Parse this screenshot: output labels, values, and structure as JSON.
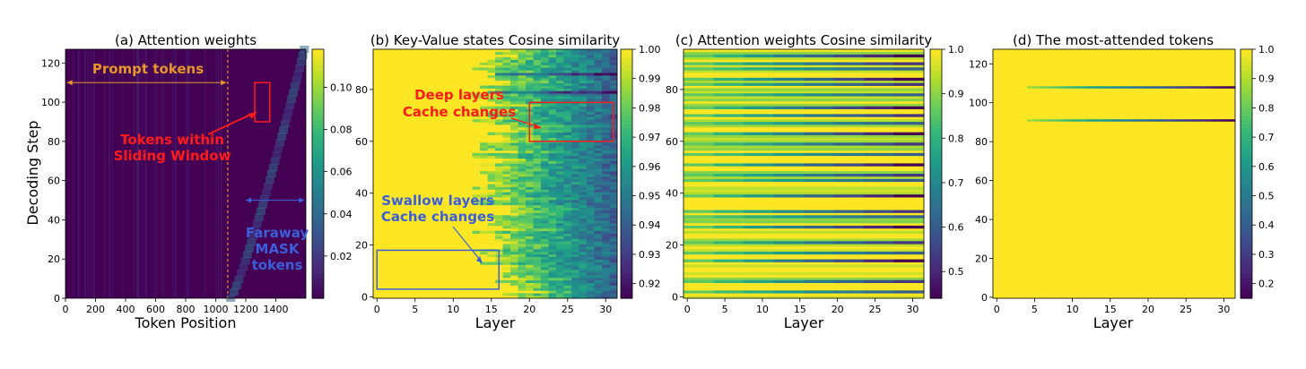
{
  "colors": {
    "purple": "#440154",
    "yellow": "#fde725",
    "red": "#ff1a1a",
    "blue": "#3b5fd9",
    "orange": "#e6952a"
  },
  "chart_data": [
    {
      "id": "a",
      "type": "heatmap",
      "title": "(a) Attention weights",
      "xlabel": "Token Position",
      "ylabel": "Decoding Step",
      "xlim": [
        0,
        1600
      ],
      "ylim": [
        0,
        127
      ],
      "xticks": [
        0,
        200,
        400,
        600,
        800,
        1000,
        1200,
        1400
      ],
      "yticks": [
        0,
        20,
        40,
        60,
        80,
        100,
        120
      ],
      "colorbar": {
        "range": [
          0,
          0.118
        ],
        "ticks": [
          0.02,
          0.04,
          0.06,
          0.08,
          0.1
        ],
        "labels": [
          "0.02",
          "0.04",
          "0.06",
          "0.08",
          "0.10"
        ]
      },
      "prompt_end": 1080,
      "diagonal": {
        "x_start": 1100,
        "x_end": 1590,
        "y_start": 0,
        "y_end": 127
      },
      "annotations": {
        "prompt": "Prompt tokens",
        "window_l1": "Tokens within",
        "window_l2": "Sliding Window",
        "faraway_l1": "Faraway",
        "faraway_l2": "MASK",
        "faraway_l3": "tokens"
      },
      "window_box": {
        "x": [
          1260,
          1360
        ],
        "y": [
          90,
          110
        ]
      }
    },
    {
      "id": "b",
      "type": "heatmap",
      "title": "(b) Key-Value states Cosine similarity",
      "xlabel": "Layer",
      "ylabel": "",
      "xlim": [
        -0.5,
        31.5
      ],
      "ylim": [
        -0.5,
        95.5
      ],
      "xticks": [
        0,
        5,
        10,
        15,
        20,
        25,
        30
      ],
      "yticks": [
        0,
        20,
        40,
        60,
        80
      ],
      "colorbar": {
        "range": [
          0.915,
          1.0
        ],
        "ticks": [
          0.92,
          0.93,
          0.94,
          0.95,
          0.96,
          0.97,
          0.98,
          0.99,
          1.0
        ],
        "labels": [
          "0.92",
          "0.93",
          "0.94",
          "0.95",
          "0.96",
          "0.97",
          "0.98",
          "0.99",
          "1.00"
        ]
      },
      "annotations": {
        "deep_l1": "Deep layers",
        "deep_l2": "Cache changes",
        "swallow_l1": "Swallow layers",
        "swallow_l2": "Cache changes"
      },
      "deep_box": {
        "x": [
          20,
          31
        ],
        "y": [
          60,
          75
        ]
      },
      "swallow_box": {
        "x": [
          0,
          16
        ],
        "y": [
          3,
          18
        ]
      }
    },
    {
      "id": "c",
      "type": "heatmap",
      "title": "(c) Attention weights Cosine similarity",
      "xlabel": "Layer",
      "ylabel": "",
      "xlim": [
        -0.5,
        31.5
      ],
      "ylim": [
        -0.5,
        95.5
      ],
      "xticks": [
        0,
        5,
        10,
        15,
        20,
        25,
        30
      ],
      "yticks": [
        0,
        20,
        40,
        60,
        80
      ],
      "colorbar": {
        "range": [
          0.44,
          1.0
        ],
        "ticks": [
          0.5,
          0.6,
          0.7,
          0.8,
          0.9,
          1.0
        ],
        "labels": [
          "0.5",
          "0.6",
          "0.7",
          "0.8",
          "0.9",
          "1.0"
        ]
      },
      "dark_rows": [
        2,
        6,
        14,
        17,
        21,
        27,
        31,
        33,
        39,
        45,
        47,
        51,
        55,
        59,
        63,
        67,
        70,
        73,
        78,
        82,
        84,
        88,
        90,
        93
      ]
    },
    {
      "id": "d",
      "type": "heatmap",
      "title": "(d) The most-attended tokens",
      "xlabel": "Layer",
      "ylabel": "",
      "xlim": [
        -0.5,
        31.5
      ],
      "ylim": [
        -0.5,
        127.5
      ],
      "xticks": [
        0,
        5,
        10,
        15,
        20,
        25,
        30
      ],
      "yticks": [
        0,
        20,
        40,
        60,
        80,
        100,
        120
      ],
      "colorbar": {
        "range": [
          0.15,
          1.0
        ],
        "ticks": [
          0.2,
          0.3,
          0.4,
          0.5,
          0.6,
          0.7,
          0.8,
          0.9,
          1.0
        ],
        "labels": [
          "0.2",
          "0.3",
          "0.4",
          "0.5",
          "0.6",
          "0.7",
          "0.8",
          "0.9",
          "1.0"
        ]
      },
      "lines": [
        {
          "row": 108,
          "from_layer": 4
        },
        {
          "row": 91,
          "from_layer": 4
        }
      ]
    }
  ]
}
